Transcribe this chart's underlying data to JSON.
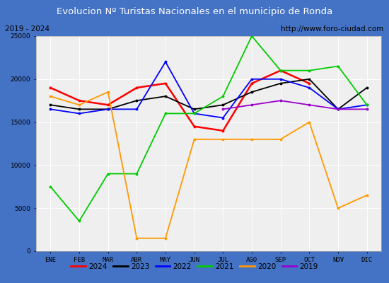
{
  "title": "Evolucion Nº Turistas Nacionales en el municipio de Ronda",
  "subtitle_left": "2019 - 2024",
  "subtitle_right": "http://www.foro-ciudad.com",
  "months": [
    "ENE",
    "FEB",
    "MAR",
    "ABR",
    "MAY",
    "JUN",
    "JUL",
    "AGO",
    "SEP",
    "OCT",
    "NOV",
    "DIC"
  ],
  "ylim": [
    0,
    25000
  ],
  "yticks": [
    0,
    5000,
    10000,
    15000,
    20000,
    25000
  ],
  "series": {
    "2024": {
      "color": "#ff0000",
      "linewidth": 1.8,
      "values": [
        19000,
        17500,
        17000,
        19000,
        19500,
        14500,
        14000,
        19500,
        21000,
        19500,
        null,
        null
      ]
    },
    "2023": {
      "color": "#000000",
      "linewidth": 1.3,
      "values": [
        17000,
        16500,
        16500,
        17500,
        18000,
        16500,
        17000,
        18500,
        19500,
        20000,
        16500,
        19000
      ]
    },
    "2022": {
      "color": "#0000ff",
      "linewidth": 1.3,
      "values": [
        16500,
        16000,
        16500,
        16500,
        22000,
        16000,
        15500,
        20000,
        20000,
        19000,
        16500,
        17000
      ]
    },
    "2021": {
      "color": "#00cc00",
      "linewidth": 1.3,
      "values": [
        7500,
        3500,
        9000,
        9000,
        16000,
        16000,
        18000,
        25000,
        21000,
        21000,
        21500,
        17000
      ]
    },
    "2020": {
      "color": "#ff9900",
      "linewidth": 1.3,
      "values": [
        18000,
        17000,
        18500,
        1500,
        1500,
        13000,
        13000,
        13000,
        13000,
        15000,
        5000,
        6500
      ]
    },
    "2019": {
      "color": "#9900cc",
      "linewidth": 1.3,
      "values": [
        null,
        null,
        null,
        null,
        null,
        null,
        16500,
        17000,
        17500,
        17000,
        16500,
        16500
      ]
    }
  },
  "title_bg_color": "#4472c4",
  "title_color": "#ffffff",
  "plot_bg_color": "#efefef",
  "border_color": "#4472c4",
  "subtitle_bg_color": "#ffffff",
  "legend_bg_color": "#ffffff"
}
